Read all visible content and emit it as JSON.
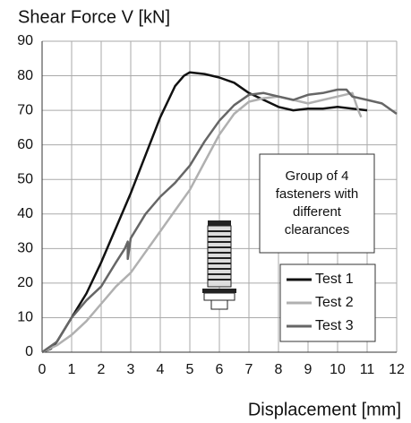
{
  "chart_data": {
    "type": "line",
    "title": "Shear Force V [kN]",
    "x_label": "Displacement [mm]",
    "xlim": [
      0,
      12
    ],
    "ylim": [
      0,
      90
    ],
    "xticks": [
      0,
      1,
      2,
      3,
      4,
      5,
      6,
      7,
      8,
      9,
      10,
      11,
      12
    ],
    "yticks": [
      0,
      10,
      20,
      30,
      40,
      50,
      60,
      70,
      80,
      90
    ],
    "grid": true,
    "legend": "lower right",
    "annotation": [
      "Group of 4",
      "fasteners with",
      "different",
      "clearances"
    ],
    "series": [
      {
        "name": "Test 1",
        "color": "#111111",
        "x": [
          0,
          0.3,
          0.5,
          1,
          1.5,
          2,
          2.5,
          3,
          3.5,
          4,
          4.5,
          4.8,
          5,
          5.5,
          6,
          6.5,
          7,
          7.5,
          8,
          8.5,
          9,
          9.5,
          10,
          10.5,
          11
        ],
        "values": [
          0,
          1,
          3,
          10,
          17,
          26,
          36,
          46,
          57,
          68,
          77,
          80,
          81,
          80.5,
          79.5,
          78,
          75,
          73,
          71,
          70,
          70.5,
          70.5,
          71,
          70.5,
          70
        ]
      },
      {
        "name": "Test 2",
        "color": "#b0b0b0",
        "x": [
          0,
          0.5,
          1,
          1.5,
          2,
          2.5,
          3,
          3.5,
          4,
          4.5,
          5,
          5.5,
          6,
          6.5,
          7,
          7.5,
          8,
          8.5,
          9,
          9.5,
          10,
          10.5,
          10.7,
          10.8
        ],
        "values": [
          0,
          2,
          5,
          9,
          14,
          19,
          23,
          29,
          35,
          41,
          47,
          55,
          63,
          69,
          72.5,
          73.5,
          74,
          73,
          72,
          73,
          74,
          75,
          70,
          68
        ]
      },
      {
        "name": "Test 3",
        "color": "#666666",
        "x": [
          0,
          0.5,
          1,
          1.5,
          2,
          2.5,
          2.8,
          2.9,
          2.9,
          3,
          3.5,
          4,
          4.5,
          5,
          5.5,
          6,
          6.5,
          7,
          7.5,
          8,
          8.5,
          9,
          9.5,
          10,
          10.3,
          10.5,
          11,
          11.5,
          12
        ],
        "values": [
          0,
          3,
          10,
          15,
          19,
          26,
          30,
          32,
          27,
          33,
          40,
          45,
          49,
          54,
          61,
          67,
          71.5,
          74.5,
          75,
          74,
          73,
          74.5,
          75,
          76,
          76,
          74,
          73,
          72,
          69
        ]
      }
    ]
  }
}
